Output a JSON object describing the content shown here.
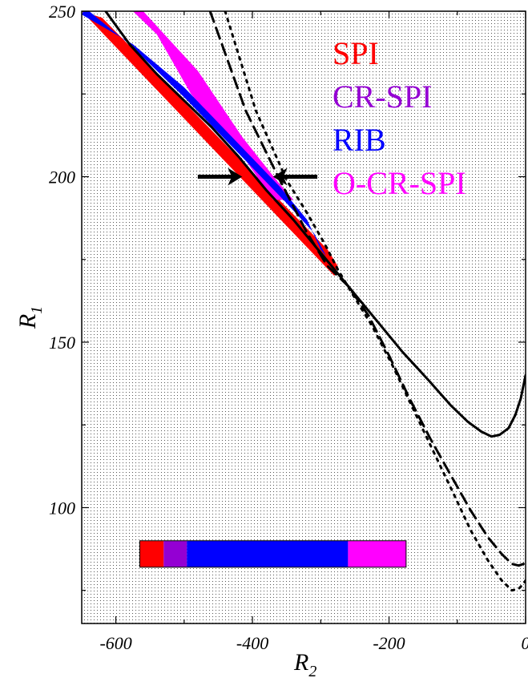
{
  "chart_data": {
    "type": "line",
    "xlabel": "R",
    "xlabel_sub": "2",
    "ylabel": "R",
    "ylabel_sub": "1",
    "xlim": [
      -650,
      0
    ],
    "ylim": [
      65,
      250
    ],
    "xticks": [
      -600,
      -400,
      -200,
      0
    ],
    "xtick_labels": [
      "-600",
      "-400",
      "-200",
      "0"
    ],
    "yticks": [
      100,
      150,
      200,
      250
    ],
    "ytick_labels": [
      "100",
      "150",
      "200",
      "250"
    ],
    "grid": false,
    "legend": {
      "placement": "top-right",
      "entries": [
        {
          "label": "SPI",
          "color": "#ff0000"
        },
        {
          "label": "CR-SPI",
          "color": "#9400d3"
        },
        {
          "label": "RIB",
          "color": "#0000ff"
        },
        {
          "label": "O-CR-SPI",
          "color": "#ff00ff"
        }
      ]
    },
    "regions": [
      {
        "color": "#ff0000",
        "points": [
          [
            -650,
            250
          ],
          [
            -280,
            170
          ],
          [
            -275,
            173
          ],
          [
            -290,
            178
          ],
          [
            -620,
            248
          ]
        ]
      },
      {
        "color": "#ff00ff",
        "points": [
          [
            -645,
            250
          ],
          [
            -575,
            250
          ],
          [
            -540,
            243
          ],
          [
            -490,
            225
          ],
          [
            -410,
            205
          ],
          [
            -370,
            193
          ],
          [
            -340,
            193
          ],
          [
            -365,
            199
          ],
          [
            -415,
            212
          ],
          [
            -480,
            232
          ],
          [
            -560,
            250
          ]
        ]
      },
      {
        "color": "#0000ff",
        "points": [
          [
            -650,
            249
          ],
          [
            -575,
            240
          ],
          [
            -500,
            227
          ],
          [
            -430,
            212
          ],
          [
            -360,
            197
          ],
          [
            -320,
            187
          ],
          [
            -300,
            178
          ],
          [
            -292,
            176
          ],
          [
            -310,
            183
          ],
          [
            -350,
            192
          ],
          [
            -420,
            207
          ],
          [
            -500,
            224
          ],
          [
            -580,
            240
          ],
          [
            -645,
            251
          ]
        ]
      }
    ],
    "series": [
      {
        "style": "solid",
        "color": "#000000",
        "points": [
          [
            -615,
            250
          ],
          [
            -580,
            240
          ],
          [
            -540,
            231
          ],
          [
            -500,
            223
          ],
          [
            -460,
            215
          ],
          [
            -420,
            206
          ],
          [
            -380,
            196
          ],
          [
            -340,
            187
          ],
          [
            -300,
            177
          ],
          [
            -260,
            167
          ],
          [
            -220,
            157
          ],
          [
            -180,
            147
          ],
          [
            -140,
            138
          ],
          [
            -110,
            131
          ],
          [
            -85,
            126
          ],
          [
            -65,
            123
          ],
          [
            -50,
            121.5
          ],
          [
            -38,
            122
          ],
          [
            -25,
            124
          ],
          [
            -15,
            128
          ],
          [
            -7,
            133
          ],
          [
            0,
            140
          ]
        ]
      },
      {
        "style": "dashed",
        "color": "#000000",
        "points": [
          [
            -462,
            250
          ],
          [
            -410,
            220
          ],
          [
            -360,
            199
          ],
          [
            -320,
            183
          ],
          [
            -290,
            173
          ],
          [
            -260,
            167
          ],
          [
            -230,
            158
          ],
          [
            -200,
            146
          ],
          [
            -170,
            133
          ],
          [
            -140,
            121
          ],
          [
            -110,
            110
          ],
          [
            -80,
            99
          ],
          [
            -55,
            91
          ],
          [
            -35,
            86
          ],
          [
            -20,
            83
          ],
          [
            -10,
            82.5
          ],
          [
            -3,
            83
          ],
          [
            0,
            84
          ]
        ]
      },
      {
        "style": "dotted",
        "color": "#000000",
        "points": [
          [
            -440,
            250
          ],
          [
            -395,
            220
          ],
          [
            -350,
            199
          ],
          [
            -320,
            189
          ],
          [
            -295,
            180
          ],
          [
            -275,
            172
          ],
          [
            -255,
            165
          ],
          [
            -225,
            155
          ],
          [
            -195,
            143
          ],
          [
            -165,
            130
          ],
          [
            -135,
            117
          ],
          [
            -105,
            104
          ],
          [
            -80,
            93
          ],
          [
            -55,
            84
          ],
          [
            -35,
            78
          ],
          [
            -20,
            75
          ],
          [
            -10,
            75.5
          ],
          [
            -3,
            77
          ],
          [
            0,
            78
          ]
        ]
      }
    ],
    "annotations": {
      "arrows": [
        {
          "from": [
            -480,
            200
          ],
          "to": [
            -415,
            200
          ]
        },
        {
          "from": [
            -305,
            200
          ],
          "to": [
            -370,
            200
          ]
        }
      ]
    },
    "color_bar": {
      "x_range": [
        -565,
        -175
      ],
      "y_range": [
        82,
        90
      ],
      "segments": [
        {
          "from": -565,
          "to": -530,
          "color": "#ff0000"
        },
        {
          "from": -530,
          "to": -496,
          "color": "#9400d3"
        },
        {
          "from": -496,
          "to": -260,
          "color": "#0000ff"
        },
        {
          "from": -260,
          "to": -175,
          "color": "#ff00ff"
        }
      ]
    },
    "background": "stippled"
  }
}
